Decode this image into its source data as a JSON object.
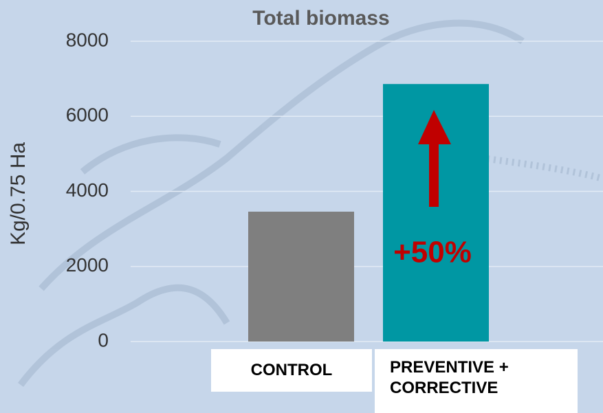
{
  "chart_data": {
    "type": "bar",
    "title": "Total biomass",
    "y_label": "Kg/0.75 Ha",
    "categories": [
      "CONTROL",
      "PREVENTIVE + CORRECTIVE"
    ],
    "values": [
      3460,
      6860
    ],
    "colors": [
      "#7f7f7f",
      "#0097a3"
    ],
    "ylim": [
      0,
      8000
    ],
    "yticks": [
      0,
      2000,
      4000,
      6000,
      8000
    ],
    "grid": true,
    "annotation": {
      "text": "+50%",
      "color": "#c00000"
    }
  }
}
